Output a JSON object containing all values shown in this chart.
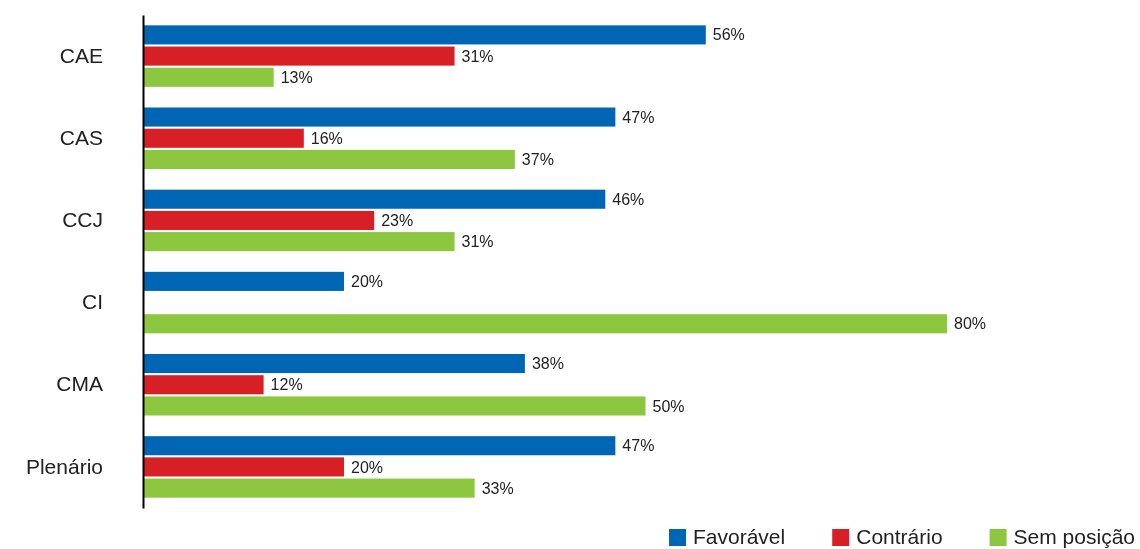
{
  "chart_data": {
    "type": "bar",
    "orientation": "horizontal",
    "categories": [
      "CAE",
      "CAS",
      "CCJ",
      "CI",
      "CMA",
      "Plenário"
    ],
    "tick_labels": "y",
    "legend": "bottom right",
    "series": [
      {
        "name": "Favorável",
        "color": "#0066b3",
        "values": [
          56,
          47,
          46,
          20,
          38,
          47
        ],
        "value_labels": [
          "56%",
          "47%",
          "46%",
          "20%",
          "38%",
          "47%"
        ]
      },
      {
        "name": "Contrário",
        "color": "#d71f26",
        "values": [
          31,
          16,
          23,
          null,
          12,
          20
        ],
        "value_labels": [
          "31%",
          "16%",
          "23%",
          null,
          "12%",
          "20%"
        ]
      },
      {
        "name": "Sem posição",
        "color": "#8dc63f",
        "values": [
          13,
          37,
          31,
          80,
          50,
          33
        ],
        "value_labels": [
          "13%",
          "37%",
          "31%",
          "80%",
          "50%",
          "33%"
        ]
      }
    ]
  }
}
